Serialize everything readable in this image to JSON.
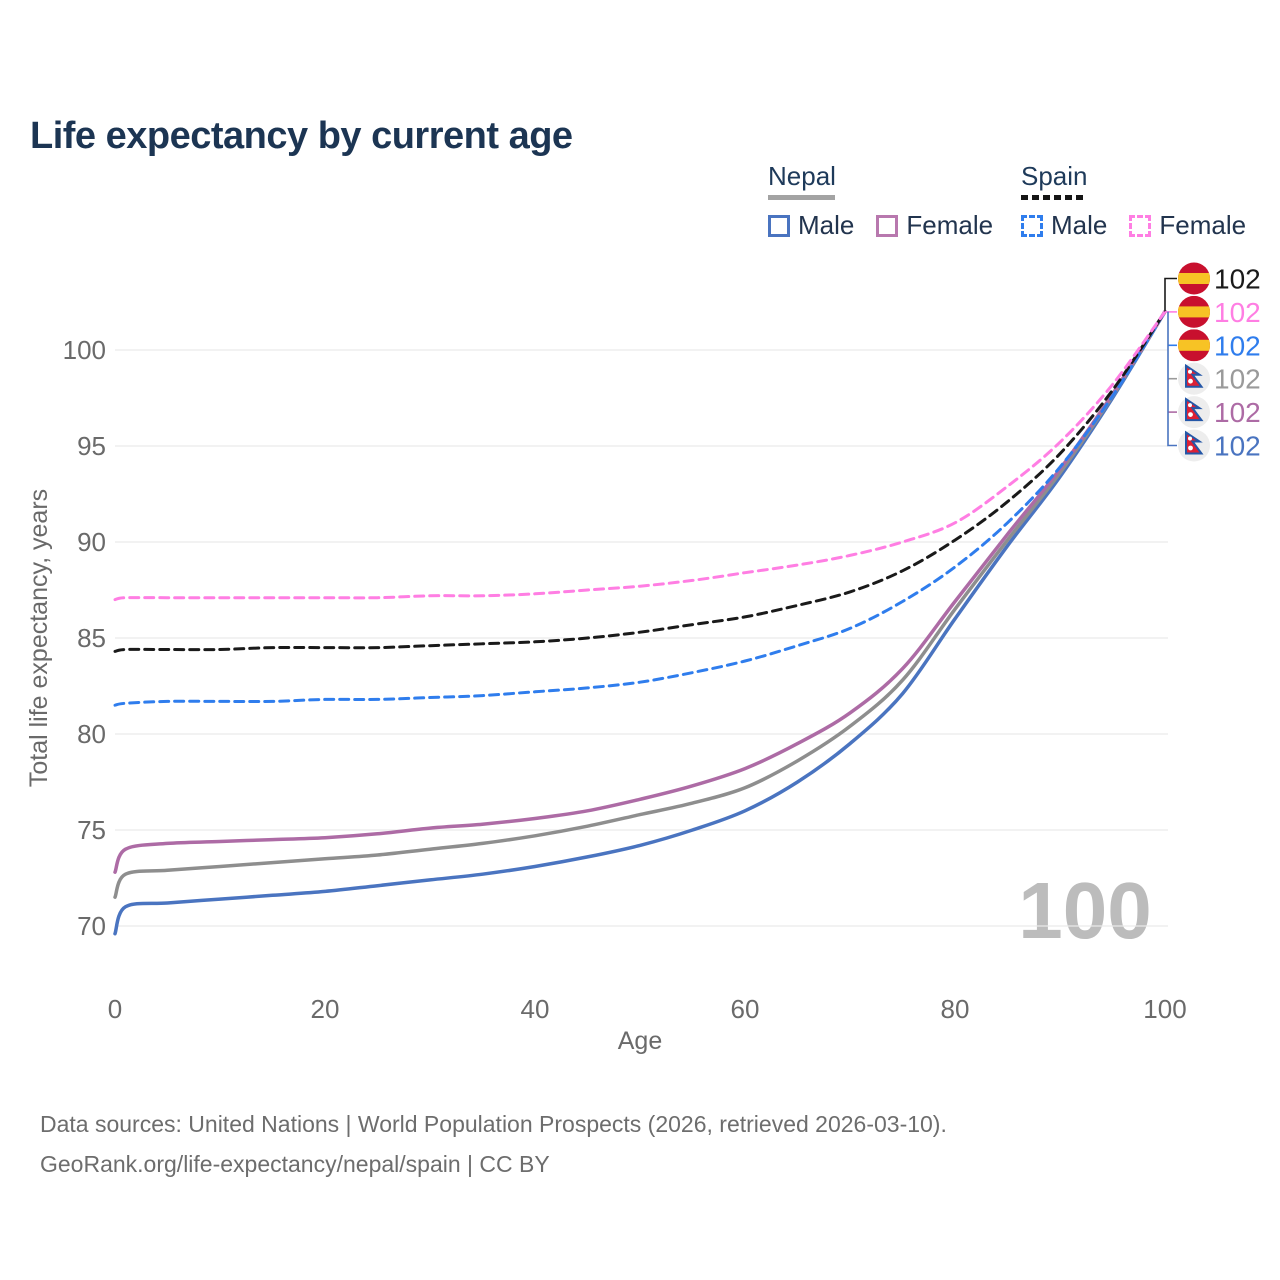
{
  "title": "Life expectancy by current age",
  "legend": {
    "nepal": {
      "label": "Nepal",
      "male": "Male",
      "female": "Female"
    },
    "spain": {
      "label": "Spain",
      "male": "Male",
      "female": "Female"
    }
  },
  "watermark": "100",
  "footer": {
    "line1": "Data sources: United Nations | World Population Prospects (2026, retrieved 2026-03-10).",
    "line2": "GeoRank.org/life-expectancy/nepal/spain | CC BY"
  },
  "colors": {
    "title": "#1c3553",
    "axis_text": "#6a6a6a",
    "grid": "#e9e9e9",
    "watermark": "#bcbcbc",
    "footer_text": "#6d6d6d",
    "nepal_male": "#4a74c0",
    "nepal_female": "#ad6ba5",
    "nepal_both": "#8e8e8e",
    "spain_male": "#2f7ded",
    "spain_female": "#ff7ee3",
    "spain_both": "#1a1a1a"
  },
  "chart_data": {
    "type": "line",
    "title": "Life expectancy by current age",
    "xlabel": "Age",
    "ylabel": "Total life expectancy, years",
    "xlim": [
      0,
      100
    ],
    "ylim": [
      69,
      103
    ],
    "x_ticks": [
      0,
      20,
      40,
      60,
      80,
      100
    ],
    "y_ticks": [
      70,
      75,
      80,
      85,
      90,
      95,
      100
    ],
    "grid": true,
    "legend_position": "top-right",
    "ages": [
      0,
      1,
      5,
      10,
      15,
      20,
      25,
      30,
      35,
      40,
      45,
      50,
      55,
      60,
      65,
      70,
      75,
      80,
      85,
      90,
      95,
      100
    ],
    "series": [
      {
        "name": "Nepal Male",
        "country": "Nepal",
        "sex": "male",
        "style": "solid",
        "color": "#4a74c0",
        "values": [
          69.6,
          71.0,
          71.2,
          71.4,
          71.6,
          71.8,
          72.1,
          72.4,
          72.7,
          73.1,
          73.6,
          74.2,
          75.0,
          76.0,
          77.5,
          79.5,
          82.1,
          86.0,
          89.8,
          93.4,
          97.5,
          102
        ]
      },
      {
        "name": "Nepal (both sexes)",
        "country": "Nepal",
        "sex": "both",
        "style": "solid",
        "color": "#8e8e8e",
        "values": [
          71.5,
          72.7,
          72.9,
          73.1,
          73.3,
          73.5,
          73.7,
          74.0,
          74.3,
          74.7,
          75.2,
          75.8,
          76.4,
          77.2,
          78.6,
          80.4,
          82.8,
          86.5,
          90.1,
          93.6,
          97.6,
          102
        ]
      },
      {
        "name": "Nepal Female",
        "country": "Nepal",
        "sex": "female",
        "style": "solid",
        "color": "#ad6ba5",
        "values": [
          72.8,
          74.0,
          74.3,
          74.4,
          74.5,
          74.6,
          74.8,
          75.1,
          75.3,
          75.6,
          76.0,
          76.6,
          77.3,
          78.2,
          79.5,
          81.1,
          83.4,
          86.9,
          90.4,
          93.8,
          97.7,
          102
        ]
      },
      {
        "name": "Spain Male",
        "country": "Spain",
        "sex": "male",
        "style": "dashed",
        "color": "#2f7ded",
        "values": [
          81.5,
          81.6,
          81.7,
          81.7,
          81.7,
          81.8,
          81.8,
          81.9,
          82.0,
          82.2,
          82.4,
          82.7,
          83.2,
          83.8,
          84.6,
          85.5,
          86.9,
          88.7,
          91.0,
          93.9,
          97.6,
          102
        ]
      },
      {
        "name": "Spain (both sexes)",
        "country": "Spain",
        "sex": "both",
        "style": "dashed",
        "color": "#1a1a1a",
        "values": [
          84.3,
          84.4,
          84.4,
          84.4,
          84.5,
          84.5,
          84.5,
          84.6,
          84.7,
          84.8,
          85.0,
          85.3,
          85.7,
          86.1,
          86.7,
          87.4,
          88.5,
          90.1,
          92.1,
          94.6,
          97.9,
          102
        ]
      },
      {
        "name": "Spain Female",
        "country": "Spain",
        "sex": "female",
        "style": "dashed",
        "color": "#ff7ee3",
        "values": [
          87.0,
          87.1,
          87.1,
          87.1,
          87.1,
          87.1,
          87.1,
          87.2,
          87.2,
          87.3,
          87.5,
          87.7,
          88.0,
          88.4,
          88.8,
          89.3,
          90.0,
          91.0,
          92.9,
          95.2,
          98.2,
          102
        ]
      }
    ],
    "end_labels": [
      {
        "series": "Spain (both sexes)",
        "flag": "spain",
        "value": "102",
        "color": "#1a1a1a"
      },
      {
        "series": "Spain Female",
        "flag": "spain",
        "value": "102",
        "color": "#ff7ee3"
      },
      {
        "series": "Spain Male",
        "flag": "spain",
        "value": "102",
        "color": "#2f7ded"
      },
      {
        "series": "Nepal (both sexes)",
        "flag": "nepal",
        "value": "102",
        "color": "#9a9a9a"
      },
      {
        "series": "Nepal Female",
        "flag": "nepal",
        "value": "102",
        "color": "#ad6ba5"
      },
      {
        "series": "Nepal Male",
        "flag": "nepal",
        "value": "102",
        "color": "#4a74c0"
      }
    ]
  }
}
